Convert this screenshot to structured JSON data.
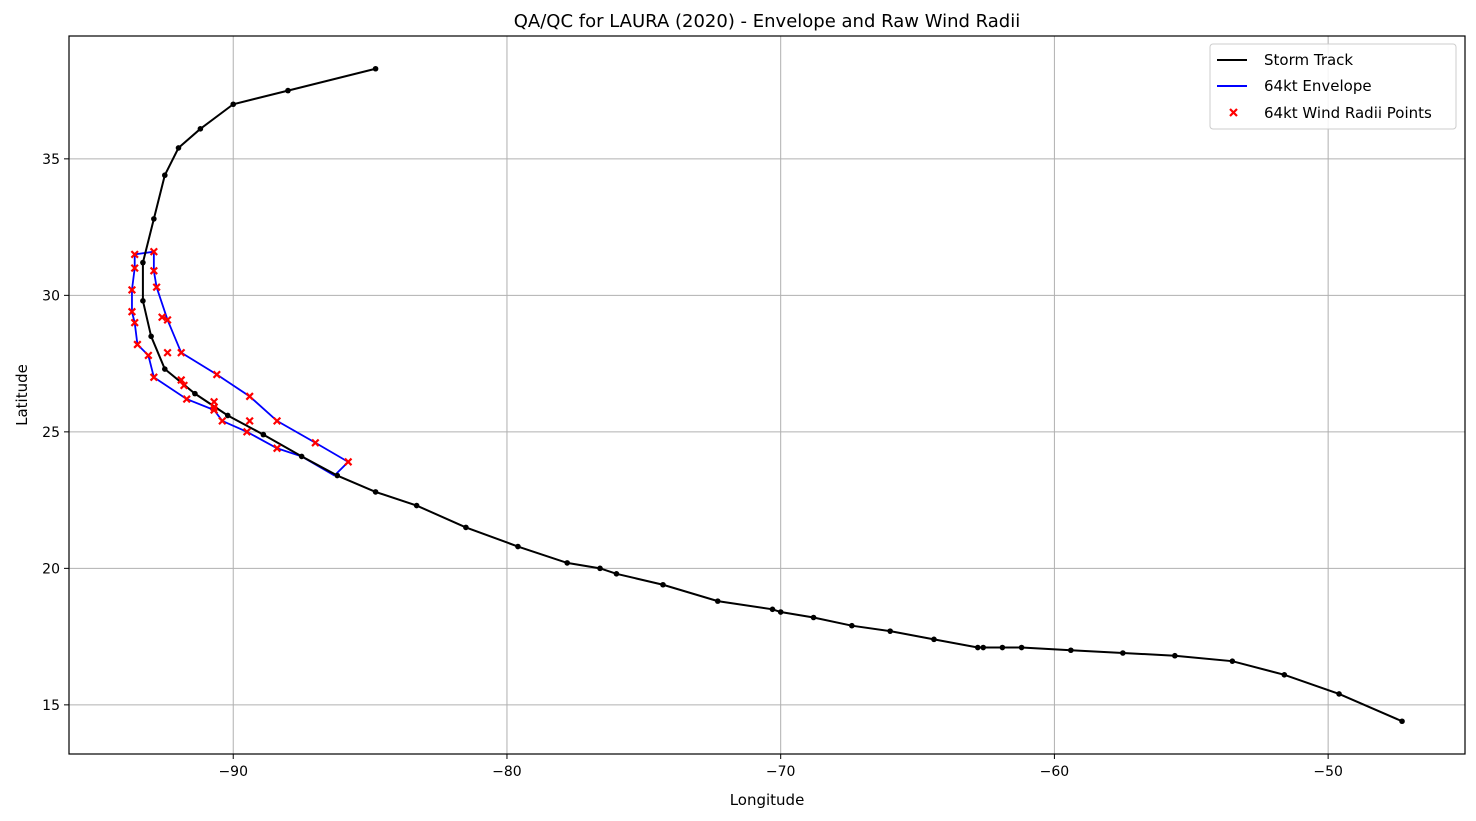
{
  "chart_data": {
    "type": "line",
    "title": "QA/QC for LAURA (2020) - Envelope and Raw Wind Radii",
    "xlabel": "Longitude",
    "ylabel": "Latitude",
    "xlim": [
      -96.0,
      -45.0
    ],
    "ylim": [
      13.2,
      39.5
    ],
    "xticks": [
      -90,
      -80,
      -70,
      -60,
      -50
    ],
    "yticks": [
      15,
      20,
      25,
      30,
      35
    ],
    "xtick_labels": [
      "−90",
      "−80",
      "−70",
      "−60",
      "−50"
    ],
    "ytick_labels": [
      "15",
      "20",
      "25",
      "30",
      "35"
    ],
    "grid": true,
    "legend_position": "top-right",
    "legend": [
      "Storm Track",
      "64kt Envelope",
      "64kt Wind Radii Points"
    ],
    "colors": {
      "track": "#000000",
      "envelope": "#0000ff",
      "radii": "#ff0000",
      "grid": "#b0b0b0"
    },
    "series": [
      {
        "name": "Storm Track",
        "kind": "line-markers",
        "points": [
          [
            -47.3,
            14.4
          ],
          [
            -49.6,
            15.4
          ],
          [
            -51.6,
            16.1
          ],
          [
            -53.5,
            16.6
          ],
          [
            -55.6,
            16.8
          ],
          [
            -57.5,
            16.9
          ],
          [
            -59.4,
            17.0
          ],
          [
            -61.2,
            17.1
          ],
          [
            -61.9,
            17.1
          ],
          [
            -62.6,
            17.1
          ],
          [
            -62.8,
            17.1
          ],
          [
            -64.4,
            17.4
          ],
          [
            -66.0,
            17.7
          ],
          [
            -67.4,
            17.9
          ],
          [
            -68.8,
            18.2
          ],
          [
            -70.0,
            18.4
          ],
          [
            -70.3,
            18.5
          ],
          [
            -72.3,
            18.8
          ],
          [
            -74.3,
            19.4
          ],
          [
            -76.0,
            19.8
          ],
          [
            -76.6,
            20.0
          ],
          [
            -77.8,
            20.2
          ],
          [
            -79.6,
            20.8
          ],
          [
            -81.5,
            21.5
          ],
          [
            -83.3,
            22.3
          ],
          [
            -84.8,
            22.8
          ],
          [
            -86.2,
            23.4
          ],
          [
            -87.5,
            24.1
          ],
          [
            -88.9,
            24.9
          ],
          [
            -90.2,
            25.6
          ],
          [
            -91.4,
            26.4
          ],
          [
            -92.5,
            27.3
          ],
          [
            -93.0,
            28.5
          ],
          [
            -93.3,
            29.8
          ],
          [
            -93.3,
            31.2
          ],
          [
            -92.9,
            32.8
          ],
          [
            -92.5,
            34.4
          ],
          [
            -92.0,
            35.4
          ],
          [
            -91.2,
            36.1
          ],
          [
            -90.0,
            37.0
          ],
          [
            -88.0,
            37.5
          ],
          [
            -84.8,
            38.3
          ]
        ]
      },
      {
        "name": "64kt Envelope",
        "kind": "line",
        "points": [
          [
            -86.3,
            23.4
          ],
          [
            -85.8,
            23.9
          ],
          [
            -87.0,
            24.6
          ],
          [
            -88.4,
            25.4
          ],
          [
            -89.4,
            26.3
          ],
          [
            -90.6,
            27.1
          ],
          [
            -91.9,
            27.9
          ],
          [
            -92.4,
            29.1
          ],
          [
            -92.8,
            30.3
          ],
          [
            -92.9,
            30.9
          ],
          [
            -92.9,
            31.6
          ],
          [
            -93.6,
            31.5
          ],
          [
            -93.6,
            31.0
          ],
          [
            -93.7,
            30.2
          ],
          [
            -93.7,
            29.4
          ],
          [
            -93.6,
            29.0
          ],
          [
            -93.5,
            28.2
          ],
          [
            -93.1,
            27.8
          ],
          [
            -92.9,
            27.0
          ],
          [
            -91.7,
            26.2
          ],
          [
            -90.7,
            25.8
          ],
          [
            -90.4,
            25.4
          ],
          [
            -89.5,
            25.0
          ],
          [
            -88.4,
            24.4
          ],
          [
            -87.5,
            24.1
          ],
          [
            -86.3,
            23.4
          ]
        ]
      },
      {
        "name": "64kt Wind Radii Points",
        "kind": "scatter",
        "points": [
          [
            -85.8,
            23.9
          ],
          [
            -87.0,
            24.6
          ],
          [
            -88.4,
            25.4
          ],
          [
            -89.4,
            26.3
          ],
          [
            -90.6,
            27.1
          ],
          [
            -91.9,
            27.9
          ],
          [
            -92.4,
            29.1
          ],
          [
            -92.8,
            30.3
          ],
          [
            -92.9,
            30.9
          ],
          [
            -92.9,
            31.6
          ],
          [
            -93.6,
            31.5
          ],
          [
            -93.6,
            31.0
          ],
          [
            -93.7,
            30.2
          ],
          [
            -93.7,
            29.4
          ],
          [
            -93.6,
            29.0
          ],
          [
            -93.5,
            28.2
          ],
          [
            -93.1,
            27.8
          ],
          [
            -92.9,
            27.0
          ],
          [
            -91.7,
            26.2
          ],
          [
            -90.7,
            25.8
          ],
          [
            -90.4,
            25.4
          ],
          [
            -89.5,
            25.0
          ],
          [
            -88.4,
            24.4
          ],
          [
            -92.6,
            29.2
          ],
          [
            -92.4,
            27.9
          ],
          [
            -91.9,
            26.9
          ],
          [
            -91.8,
            26.7
          ],
          [
            -90.7,
            26.1
          ],
          [
            -90.7,
            25.9
          ],
          [
            -89.4,
            25.4
          ]
        ]
      }
    ]
  }
}
